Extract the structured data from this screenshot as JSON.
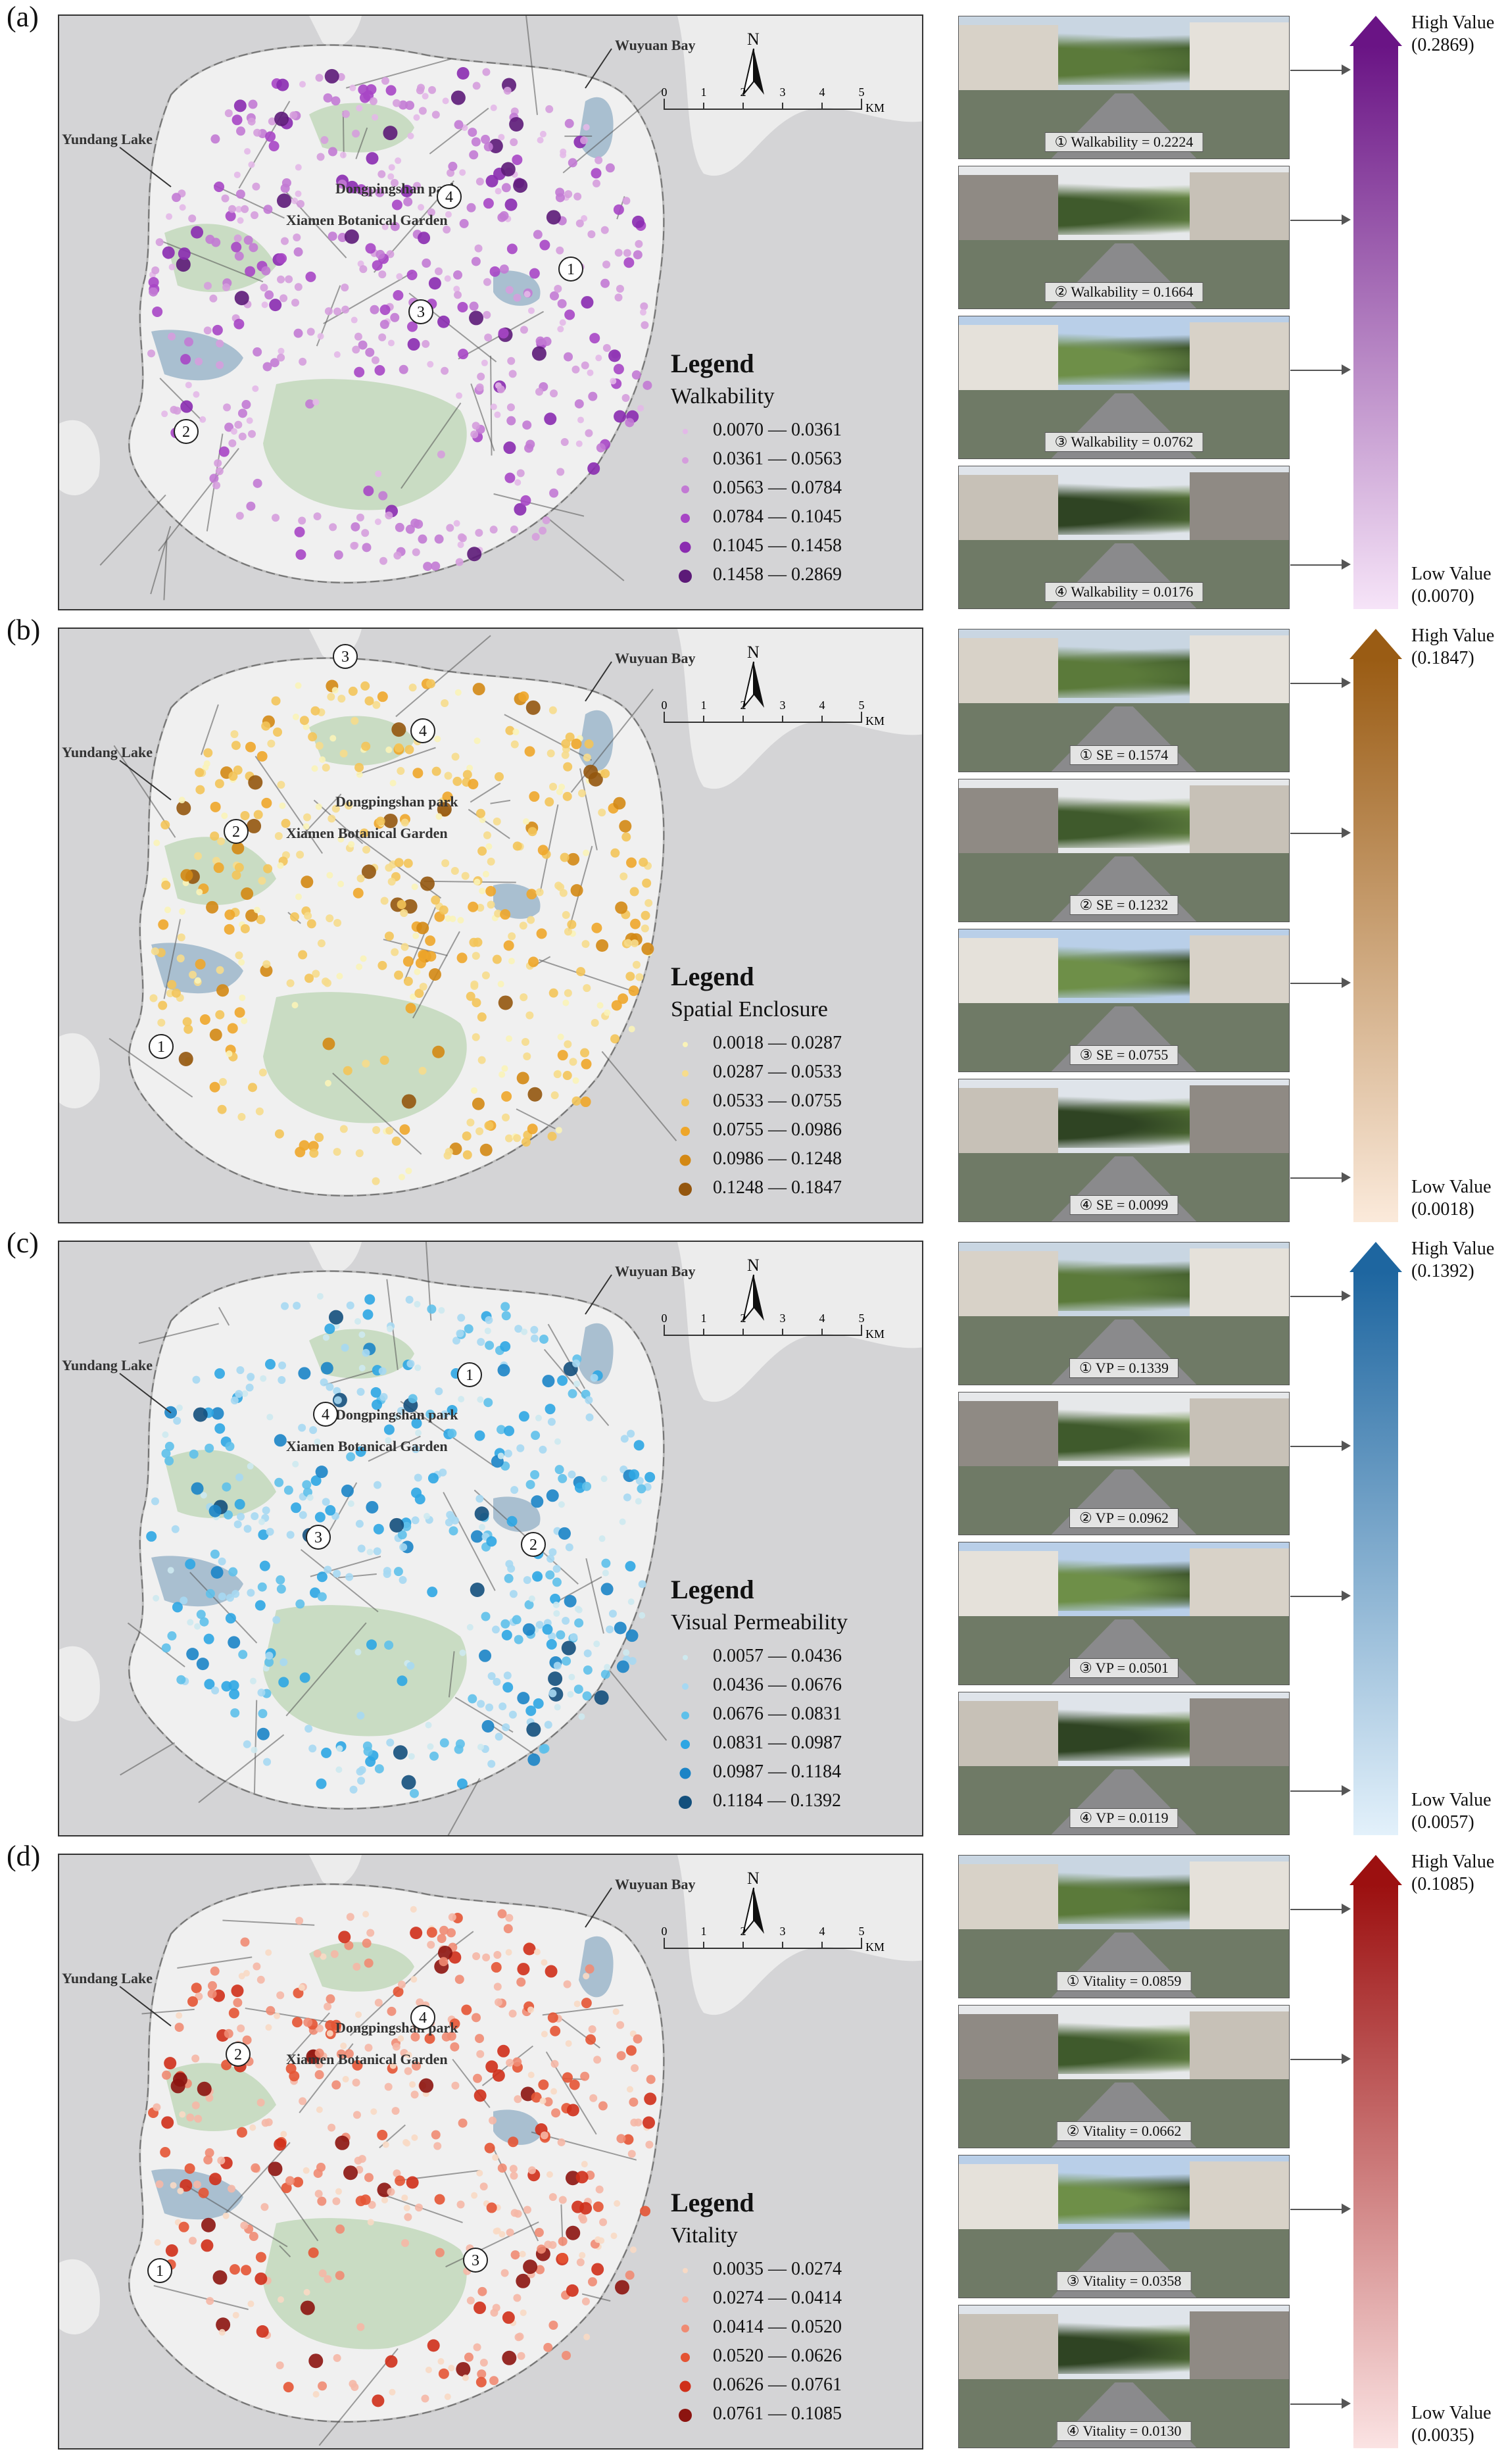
{
  "place_names": {
    "wuyuan_bay": "Wuyuan Bay",
    "yundang_lake": "Yundang Lake",
    "dongpingshan": "Dongpingshan park",
    "botanical": "Xiamen Botanical Garden"
  },
  "scale_bar": {
    "ticks": [
      "0",
      "1",
      "2",
      "3",
      "4",
      "5"
    ],
    "unit": "KM"
  },
  "north_label": "N",
  "legend_title": "Legend",
  "high_label": "High Value",
  "low_label": "Low Value",
  "panels": [
    {
      "label": "(a)",
      "indicator": "Walkability",
      "color": "#7a1f8e",
      "gradient_top": "#6a1485",
      "gradient_bottom": "#f6e4f8",
      "high": "(0.2869)",
      "low": "(0.0070)",
      "legend": [
        {
          "range": "0.0070 — 0.0361",
          "color": "#e3b8e8"
        },
        {
          "range": "0.0361 — 0.0563",
          "color": "#d59ddd"
        },
        {
          "range": "0.0563 — 0.0784",
          "color": "#c27ad4"
        },
        {
          "range": "0.0784 — 0.1045",
          "color": "#a746c5"
        },
        {
          "range": "0.1045 — 0.1458",
          "color": "#8a2bb0"
        },
        {
          "range": "0.1458 — 0.2869",
          "color": "#5c1a78"
        }
      ],
      "markers": [
        "1",
        "2",
        "3",
        "4"
      ],
      "photos": [
        {
          "caption": "① Walkability = 0.2224"
        },
        {
          "caption": "② Walkability = 0.1664"
        },
        {
          "caption": "③ Walkability = 0.0762"
        },
        {
          "caption": "④ Walkability = 0.0176"
        }
      ]
    },
    {
      "label": "(b)",
      "indicator": "Spatial Enclosure",
      "color": "#d68a10",
      "gradient_top": "#9a5c14",
      "gradient_bottom": "#fbeadb",
      "high": "(0.1847)",
      "low": "(0.0018)",
      "legend": [
        {
          "range": "0.0018 — 0.0287",
          "color": "#faf3b8"
        },
        {
          "range": "0.0287 — 0.0533",
          "color": "#f6dc8c"
        },
        {
          "range": "0.0533 — 0.0755",
          "color": "#f3c459"
        },
        {
          "range": "0.0755 — 0.0986",
          "color": "#eea62a"
        },
        {
          "range": "0.0986 — 0.1248",
          "color": "#d38814"
        },
        {
          "range": "0.1248 — 0.1847",
          "color": "#94560e"
        }
      ],
      "markers": [
        "1",
        "2",
        "3",
        "4"
      ],
      "photos": [
        {
          "caption": "① SE = 0.1574"
        },
        {
          "caption": "② SE = 0.1232"
        },
        {
          "caption": "③ SE = 0.0755"
        },
        {
          "caption": "④ SE = 0.0099"
        }
      ]
    },
    {
      "label": "(c)",
      "indicator": "Visual Permeability",
      "color": "#2a8fd0",
      "gradient_top": "#1e66a0",
      "gradient_bottom": "#e3f1fb",
      "high": "(0.1392)",
      "low": "(0.0057)",
      "legend": [
        {
          "range": "0.0057 — 0.0436",
          "color": "#cde9ef"
        },
        {
          "range": "0.0436 — 0.0676",
          "color": "#a6d8f2"
        },
        {
          "range": "0.0676 — 0.0831",
          "color": "#5ec0ea"
        },
        {
          "range": "0.0831 — 0.0987",
          "color": "#2ea6e3"
        },
        {
          "range": "0.0987 — 0.1184",
          "color": "#1b84c6"
        },
        {
          "range": "0.1184 — 0.1392",
          "color": "#134f7c"
        }
      ],
      "markers": [
        "1",
        "2",
        "3",
        "4"
      ],
      "photos": [
        {
          "caption": "① VP = 0.1339"
        },
        {
          "caption": "② VP = 0.0962"
        },
        {
          "caption": "③ VP = 0.0501"
        },
        {
          "caption": "④ VP = 0.0119"
        }
      ]
    },
    {
      "label": "(d)",
      "indicator": "Vitality",
      "color": "#d8321e",
      "gradient_top": "#9c1010",
      "gradient_bottom": "#fbe3e3",
      "high": "(0.1085)",
      "low": "(0.0035)",
      "legend": [
        {
          "range": "0.0035 — 0.0274",
          "color": "#f8d9c4"
        },
        {
          "range": "0.0274 — 0.0414",
          "color": "#f5b7a6"
        },
        {
          "range": "0.0414 — 0.0520",
          "color": "#ef8b73"
        },
        {
          "range": "0.0520 — 0.0626",
          "color": "#e45434"
        },
        {
          "range": "0.0626 — 0.0761",
          "color": "#cf2f19"
        },
        {
          "range": "0.0761 — 0.1085",
          "color": "#8c1410"
        }
      ],
      "markers": [
        "1",
        "2",
        "3",
        "4"
      ],
      "photos": [
        {
          "caption": "① Vitality = 0.0859"
        },
        {
          "caption": "② Vitality = 0.0662"
        },
        {
          "caption": "③ Vitality = 0.0358"
        },
        {
          "caption": "④ Vitality = 0.0130"
        }
      ]
    }
  ]
}
